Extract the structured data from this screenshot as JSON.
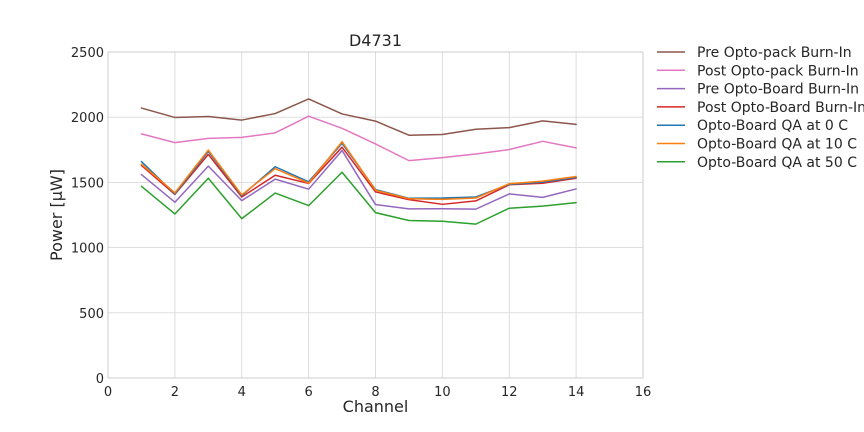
{
  "chart_data": {
    "type": "line",
    "title": "D4731",
    "xlabel": "Channel",
    "ylabel": "Power [μW]",
    "xlim": [
      0,
      16
    ],
    "ylim": [
      0,
      2500
    ],
    "xticks": [
      0,
      2,
      4,
      6,
      8,
      10,
      12,
      14,
      16
    ],
    "yticks": [
      0,
      500,
      1000,
      1500,
      2000,
      2500
    ],
    "grid": true,
    "legend_position": "outside-right",
    "x": [
      1,
      2,
      3,
      4,
      5,
      6,
      7,
      8,
      9,
      10,
      11,
      12,
      13,
      14
    ],
    "series": [
      {
        "name": "Pre Opto-pack Burn-In",
        "color": "#8c564b",
        "values": [
          2070,
          1998,
          2005,
          1978,
          2028,
          2140,
          2025,
          1970,
          1862,
          1867,
          1908,
          1920,
          1972,
          1945
        ]
      },
      {
        "name": "Post Opto-pack Burn-In",
        "color": "#e377c2",
        "values": [
          1872,
          1805,
          1838,
          1845,
          1880,
          2008,
          1915,
          1795,
          1667,
          1690,
          1718,
          1752,
          1815,
          1765
        ]
      },
      {
        "name": "Pre Opto-Board Burn-In",
        "color": "#9467bd",
        "values": [
          1560,
          1348,
          1625,
          1360,
          1525,
          1448,
          1745,
          1330,
          1297,
          1298,
          1295,
          1412,
          1385,
          1450
        ]
      },
      {
        "name": "Post Opto-Board Burn-In",
        "color": "#d62728",
        "values": [
          1630,
          1408,
          1715,
          1388,
          1555,
          1492,
          1770,
          1427,
          1368,
          1332,
          1358,
          1482,
          1493,
          1532
        ]
      },
      {
        "name": "Opto-Board QA at 0 C",
        "color": "#1f77b4",
        "values": [
          1660,
          1412,
          1738,
          1398,
          1620,
          1505,
          1800,
          1445,
          1378,
          1380,
          1388,
          1485,
          1502,
          1538
        ]
      },
      {
        "name": "Opto-Board QA at 10 C",
        "color": "#ff7f0e",
        "values": [
          1640,
          1420,
          1748,
          1405,
          1605,
          1495,
          1812,
          1440,
          1375,
          1370,
          1380,
          1490,
          1510,
          1545
        ]
      },
      {
        "name": "Opto-Board QA at 50 C",
        "color": "#2ca02c",
        "values": [
          1470,
          1258,
          1532,
          1222,
          1418,
          1322,
          1578,
          1268,
          1208,
          1202,
          1180,
          1302,
          1318,
          1345
        ]
      }
    ]
  }
}
